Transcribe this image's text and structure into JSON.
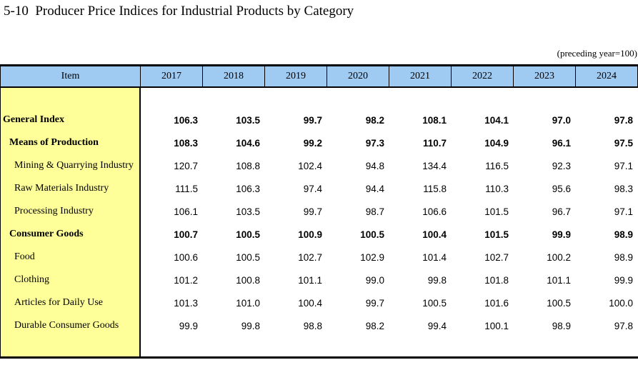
{
  "title": "5-10  Producer Price Indices for Industrial Products by Category",
  "note": "(preceding year=100)",
  "colors": {
    "header_bg": "#9fcbf3",
    "stub_bg": "#ffff99",
    "border": "#000000"
  },
  "table": {
    "item_header": "Item",
    "years": [
      "2017",
      "2018",
      "2019",
      "2020",
      "2021",
      "2022",
      "2023",
      "2024"
    ],
    "rows": [
      {
        "label": "General Index",
        "indent": 0,
        "bold": true,
        "values": [
          "106.3",
          "103.5",
          "99.7",
          "98.2",
          "108.1",
          "104.1",
          "97.0",
          "97.8"
        ]
      },
      {
        "label": "Means of Production",
        "indent": 1,
        "bold": true,
        "values": [
          "108.3",
          "104.6",
          "99.2",
          "97.3",
          "110.7",
          "104.9",
          "96.1",
          "97.5"
        ]
      },
      {
        "label": "Mining & Quarrying Industry",
        "indent": 2,
        "bold": false,
        "values": [
          "120.7",
          "108.8",
          "102.4",
          "94.8",
          "134.4",
          "116.5",
          "92.3",
          "97.1"
        ]
      },
      {
        "label": "Raw Materials Industry",
        "indent": 2,
        "bold": false,
        "values": [
          "111.5",
          "106.3",
          "97.4",
          "94.4",
          "115.8",
          "110.3",
          "95.6",
          "98.3"
        ]
      },
      {
        "label": "Processing Industry",
        "indent": 2,
        "bold": false,
        "values": [
          "106.1",
          "103.5",
          "99.7",
          "98.7",
          "106.6",
          "101.5",
          "96.7",
          "97.1"
        ]
      },
      {
        "label": "Consumer Goods",
        "indent": 1,
        "bold": true,
        "values": [
          "100.7",
          "100.5",
          "100.9",
          "100.5",
          "100.4",
          "101.5",
          "99.9",
          "98.9"
        ]
      },
      {
        "label": "Food",
        "indent": 2,
        "bold": false,
        "values": [
          "100.6",
          "100.5",
          "102.7",
          "102.9",
          "101.4",
          "102.7",
          "100.2",
          "98.9"
        ]
      },
      {
        "label": "Clothing",
        "indent": 2,
        "bold": false,
        "values": [
          "101.2",
          "100.8",
          "101.1",
          "99.0",
          "99.8",
          "101.8",
          "101.1",
          "99.9"
        ]
      },
      {
        "label": "Articles for Daily Use",
        "indent": 2,
        "bold": false,
        "values": [
          "101.3",
          "101.0",
          "100.4",
          "99.7",
          "100.5",
          "101.6",
          "100.5",
          "100.0"
        ]
      },
      {
        "label": "Durable Consumer Goods",
        "indent": 2,
        "bold": false,
        "values": [
          "99.9",
          "99.8",
          "98.8",
          "98.2",
          "99.4",
          "100.1",
          "98.9",
          "97.8"
        ]
      }
    ]
  },
  "chart_data": {
    "type": "table",
    "title": "5-10 Producer Price Indices for Industrial Products by Category",
    "unit_note": "(preceding year=100)",
    "columns": [
      "Item",
      "2017",
      "2018",
      "2019",
      "2020",
      "2021",
      "2022",
      "2023",
      "2024"
    ],
    "series": [
      {
        "name": "General Index",
        "values": [
          106.3,
          103.5,
          99.7,
          98.2,
          108.1,
          104.1,
          97.0,
          97.8
        ]
      },
      {
        "name": "Means of Production",
        "values": [
          108.3,
          104.6,
          99.2,
          97.3,
          110.7,
          104.9,
          96.1,
          97.5
        ]
      },
      {
        "name": "Mining & Quarrying Industry",
        "values": [
          120.7,
          108.8,
          102.4,
          94.8,
          134.4,
          116.5,
          92.3,
          97.1
        ]
      },
      {
        "name": "Raw Materials Industry",
        "values": [
          111.5,
          106.3,
          97.4,
          94.4,
          115.8,
          110.3,
          95.6,
          98.3
        ]
      },
      {
        "name": "Processing Industry",
        "values": [
          106.1,
          103.5,
          99.7,
          98.7,
          106.6,
          101.5,
          96.7,
          97.1
        ]
      },
      {
        "name": "Consumer Goods",
        "values": [
          100.7,
          100.5,
          100.9,
          100.5,
          100.4,
          101.5,
          99.9,
          98.9
        ]
      },
      {
        "name": "Food",
        "values": [
          100.6,
          100.5,
          102.7,
          102.9,
          101.4,
          102.7,
          100.2,
          98.9
        ]
      },
      {
        "name": "Clothing",
        "values": [
          101.2,
          100.8,
          101.1,
          99.0,
          99.8,
          101.8,
          101.1,
          99.9
        ]
      },
      {
        "name": "Articles for Daily Use",
        "values": [
          101.3,
          101.0,
          100.4,
          99.7,
          100.5,
          101.6,
          100.5,
          100.0
        ]
      },
      {
        "name": "Durable Consumer Goods",
        "values": [
          99.9,
          99.8,
          98.8,
          98.2,
          99.4,
          100.1,
          98.9,
          97.8
        ]
      }
    ]
  }
}
